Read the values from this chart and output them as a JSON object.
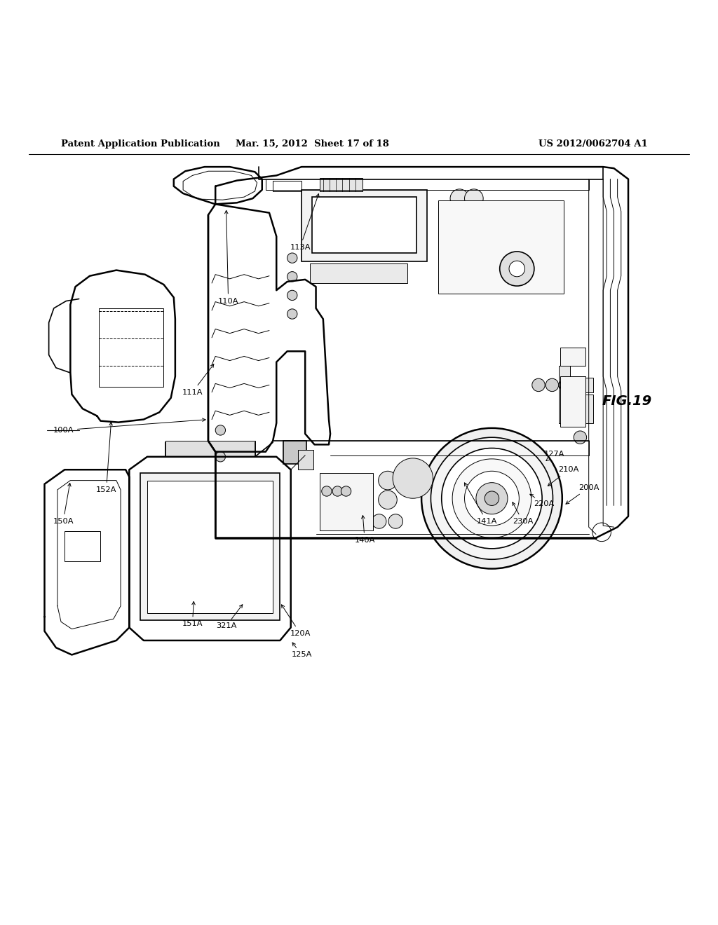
{
  "background_color": "#ffffff",
  "line_color": "#000000",
  "header_left": "Patent Application Publication",
  "header_mid": "Mar. 15, 2012  Sheet 17 of 18",
  "header_right": "US 2012/0062704 A1",
  "fig_label": "FIG.19",
  "lw_main": 1.2,
  "lw_thin": 0.7,
  "lw_thick": 1.8
}
